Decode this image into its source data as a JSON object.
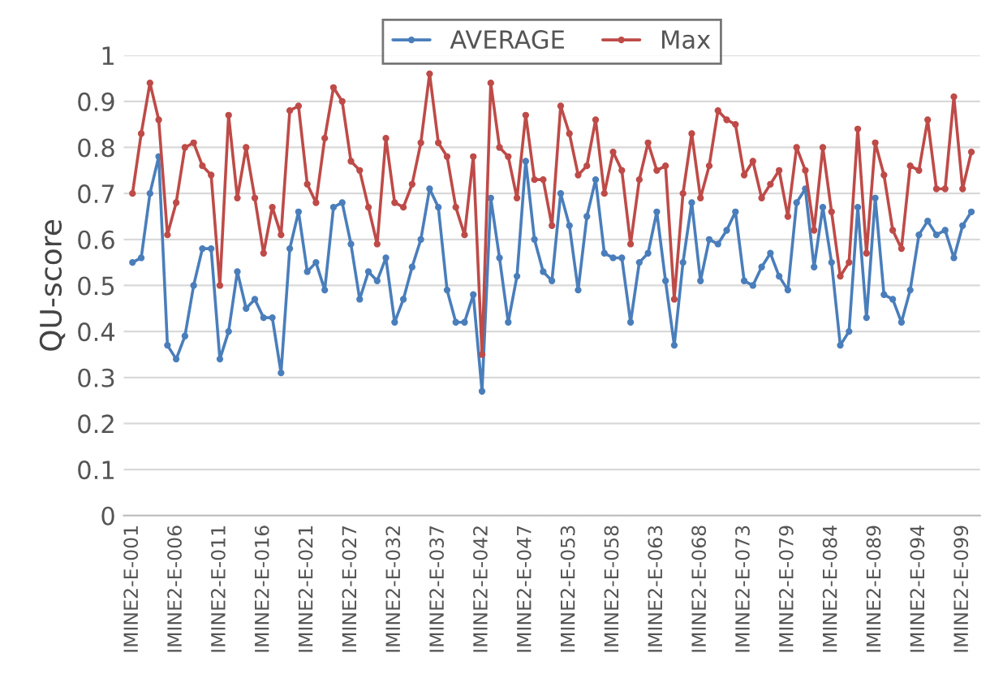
{
  "chart_data": {
    "type": "line",
    "ylabel": "QU-score",
    "categories": [
      "IMINE2-E-001",
      null,
      null,
      null,
      null,
      "IMINE2-E-006",
      null,
      null,
      null,
      null,
      "IMINE2-E-011",
      null,
      null,
      null,
      null,
      "IMINE2-E-016",
      null,
      null,
      null,
      null,
      "IMINE2-E-021",
      null,
      null,
      null,
      null,
      "IMINE2-E-027",
      null,
      null,
      null,
      null,
      "IMINE2-E-032",
      null,
      null,
      null,
      null,
      "IMINE2-E-037",
      null,
      null,
      null,
      null,
      "IMINE2-E-042",
      null,
      null,
      null,
      null,
      "IMINE2-E-047",
      null,
      null,
      null,
      null,
      "IMINE2-E-053",
      null,
      null,
      null,
      null,
      "IMINE2-E-058",
      null,
      null,
      null,
      null,
      "IMINE2-E-063",
      null,
      null,
      null,
      null,
      "IMINE2-E-068",
      null,
      null,
      null,
      null,
      "IMINE2-E-073",
      null,
      null,
      null,
      null,
      "IMINE2-E-079",
      null,
      null,
      null,
      null,
      "IMINE2-E-084",
      null,
      null,
      null,
      null,
      "IMINE2-E-089",
      null,
      null,
      null,
      null,
      "IMINE2-E-094",
      null,
      null,
      null,
      null,
      "IMINE2-E-099",
      null
    ],
    "series": [
      {
        "name": "AVERAGE",
        "color": "#4a7ebb",
        "values": [
          0.55,
          0.56,
          0.7,
          0.78,
          0.37,
          0.34,
          0.39,
          0.5,
          0.58,
          0.58,
          0.34,
          0.4,
          0.53,
          0.45,
          0.47,
          0.43,
          0.43,
          0.31,
          0.58,
          0.66,
          0.53,
          0.55,
          0.49,
          0.67,
          0.68,
          0.59,
          0.47,
          0.53,
          0.51,
          0.56,
          0.42,
          0.47,
          0.54,
          0.6,
          0.71,
          0.67,
          0.49,
          0.42,
          0.42,
          0.48,
          0.27,
          0.69,
          0.56,
          0.42,
          0.52,
          0.77,
          0.6,
          0.53,
          0.51,
          0.7,
          0.63,
          0.49,
          0.65,
          0.73,
          0.57,
          0.56,
          0.56,
          0.42,
          0.55,
          0.57,
          0.66,
          0.51,
          0.37,
          0.55,
          0.68,
          0.51,
          0.6,
          0.59,
          0.62,
          0.66,
          0.51,
          0.5,
          0.54,
          0.57,
          0.52,
          0.49,
          0.68,
          0.71,
          0.54,
          0.67,
          0.55,
          0.37,
          0.4,
          0.67,
          0.43,
          0.69,
          0.48,
          0.47,
          0.42,
          0.49,
          0.61,
          0.64,
          0.61,
          0.62,
          0.56,
          0.63,
          0.66
        ]
      },
      {
        "name": "Max",
        "color": "#be4b48",
        "values": [
          0.7,
          0.83,
          0.94,
          0.86,
          0.61,
          0.68,
          0.8,
          0.81,
          0.76,
          0.74,
          0.5,
          0.87,
          0.69,
          0.8,
          0.69,
          0.57,
          0.67,
          0.61,
          0.88,
          0.89,
          0.72,
          0.68,
          0.82,
          0.93,
          0.9,
          0.77,
          0.75,
          0.67,
          0.59,
          0.82,
          0.68,
          0.67,
          0.72,
          0.81,
          0.96,
          0.81,
          0.78,
          0.67,
          0.61,
          0.78,
          0.35,
          0.94,
          0.8,
          0.78,
          0.69,
          0.87,
          0.73,
          0.73,
          0.63,
          0.89,
          0.83,
          0.74,
          0.76,
          0.86,
          0.7,
          0.79,
          0.75,
          0.59,
          0.73,
          0.81,
          0.75,
          0.76,
          0.47,
          0.7,
          0.83,
          0.69,
          0.76,
          0.88,
          0.86,
          0.85,
          0.74,
          0.77,
          0.69,
          0.72,
          0.75,
          0.65,
          0.8,
          0.75,
          0.62,
          0.8,
          0.66,
          0.52,
          0.55,
          0.84,
          0.57,
          0.81,
          0.74,
          0.62,
          0.58,
          0.76,
          0.75,
          0.86,
          0.71,
          0.71,
          0.91,
          0.71,
          0.79
        ]
      }
    ],
    "ylim": [
      0,
      1
    ],
    "yticks": [
      0,
      0.1,
      0.2,
      0.3,
      0.4,
      0.5,
      0.6,
      0.7,
      0.8,
      0.9,
      1
    ],
    "grid": "y",
    "legend": "top",
    "marker": "circle",
    "line_style": "solid"
  }
}
